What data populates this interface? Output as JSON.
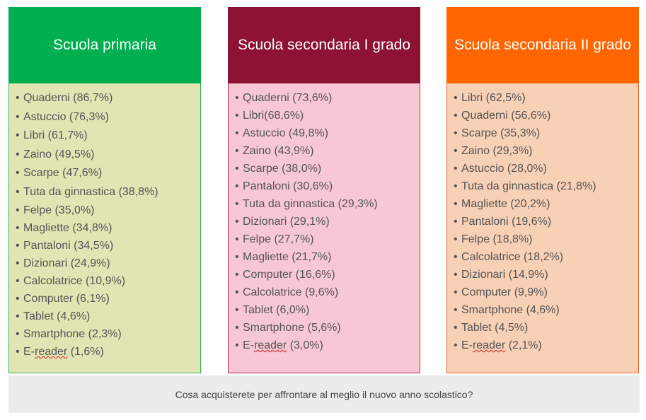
{
  "columns": [
    {
      "id": "primaria",
      "title": "Scuola primaria",
      "header_color": "#00b050",
      "body_color": "#e3e4b4",
      "items": [
        "Quaderni (86,7%)",
        "Astuccio (76,3%)",
        "Libri (61,7%)",
        "Zaino (49,5%)",
        "Scarpe (47,6%)",
        "Tuta da ginnastica (38,8%)",
        "Felpe (35,0%)",
        "Magliette (34,8%)",
        "Pantaloni (34,5%)",
        "Dizionari (24,9%)",
        "Calcolatrice (10,9%)",
        "Computer (6,1%)",
        "Tablet (4,6%)",
        "Smartphone (2,3%)",
        "E-reader (1,6%)"
      ]
    },
    {
      "id": "secondaria-1",
      "title": "Scuola secondaria I grado",
      "header_color": "#8e1234",
      "body_color": "#f7c7d3",
      "items": [
        "Quaderni (73,6%)",
        "Libri(68,6%)",
        "Astuccio (49,8%)",
        "Zaino (43,9%)",
        "Scarpe (38,0%)",
        "Pantaloni (30,6%)",
        "Tuta da ginnastica (29,3%)",
        "Dizionari (29,1%)",
        "Felpe (27,7%)",
        "Magliette (21,7%)",
        "Computer (16,6%)",
        "Calcolatrice (9,6%)",
        "Tablet (6,0%)",
        "Smartphone (5,6%)",
        "E-reader (3,0%)"
      ]
    },
    {
      "id": "secondaria-2",
      "title": "Scuola secondaria II grado",
      "header_color": "#ff6600",
      "body_color": "#f8d0b5",
      "items": [
        "Libri (62,5%)",
        "Quaderni (56,6%)",
        "Scarpe (35,3%)",
        "Zaino (29,3%)",
        "Astuccio (28,0%)",
        "Tuta da ginnastica (21,8%)",
        "Magliette (20,2%)",
        "Pantaloni (19,6%)",
        "Felpe (18,8%)",
        "Calcolatrice (18,2%)",
        "Dizionari (14,9%)",
        "Computer (9,9%)",
        "Smartphone (4,6%)",
        "Tablet (4,5%)",
        "E-reader (2,1%)"
      ]
    }
  ],
  "footer": {
    "question": "Cosa acquisterete per affrontare al meglio il nuovo anno scolastico?"
  }
}
